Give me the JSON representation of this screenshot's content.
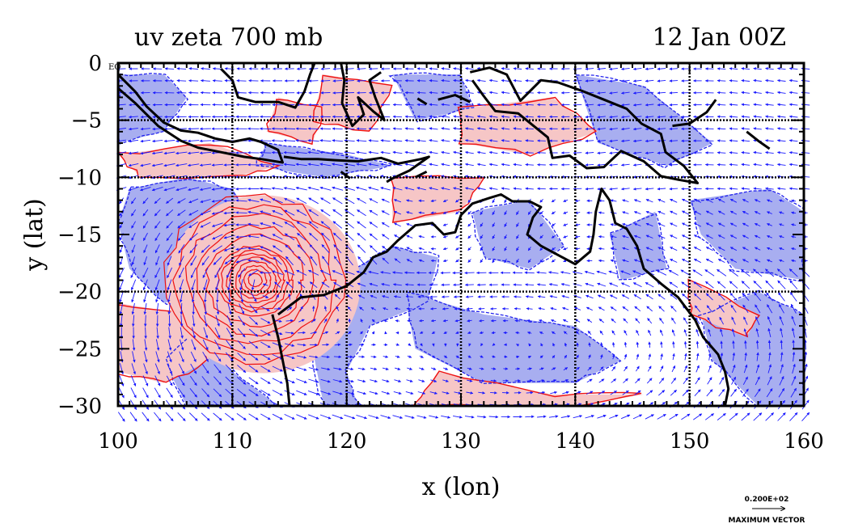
{
  "figure": {
    "title_left": "uv zeta 700 mb",
    "title_right": "12 Jan 00Z",
    "xlabel": "x (lon)",
    "ylabel": "y (lat)",
    "corner_label": "EQ",
    "vector_scale_value": "0.200E+02",
    "vector_scale_label": "MAXIMUM VECTOR"
  },
  "chart_data": {
    "type": "map",
    "xlim": [
      100,
      160
    ],
    "ylim": [
      -30,
      0
    ],
    "xticks": [
      100,
      110,
      120,
      130,
      140,
      150,
      160
    ],
    "yticks": [
      0,
      -5,
      -10,
      -15,
      -20,
      -25,
      -30
    ],
    "grid_lon": [
      110,
      120,
      130,
      140,
      150
    ],
    "grid_lat": [
      -5,
      -10,
      -20
    ],
    "colors": {
      "positive_fill": "#f6c6c6",
      "negative_fill": "#a8aef0",
      "positive_contour": "#ee1111",
      "negative_contour": "#2222ee",
      "vectors": "#1a1aff",
      "coast": "#000000"
    },
    "cyclone": {
      "lon": 112,
      "lat": -19
    },
    "negative_regions": [
      [
        [
          100,
          -1
        ],
        [
          104,
          -1
        ],
        [
          106,
          -3
        ],
        [
          104,
          -6
        ],
        [
          100,
          -7
        ]
      ],
      [
        [
          101,
          -11
        ],
        [
          106,
          -10
        ],
        [
          110,
          -11
        ],
        [
          112,
          -14
        ],
        [
          111,
          -17
        ],
        [
          108,
          -20
        ],
        [
          104,
          -21
        ],
        [
          101,
          -18
        ],
        [
          100,
          -14
        ]
      ],
      [
        [
          108,
          -22
        ],
        [
          110,
          -27
        ],
        [
          114,
          -30
        ],
        [
          106,
          -30
        ],
        [
          104,
          -26
        ]
      ],
      [
        [
          119,
          -19
        ],
        [
          124,
          -16
        ],
        [
          128,
          -17
        ],
        [
          127,
          -21
        ],
        [
          122,
          -23
        ],
        [
          120,
          -27
        ],
        [
          121,
          -30
        ],
        [
          118,
          -30
        ],
        [
          117,
          -25
        ]
      ],
      [
        [
          125,
          -20
        ],
        [
          132,
          -22
        ],
        [
          140,
          -23
        ],
        [
          144,
          -26
        ],
        [
          140,
          -28
        ],
        [
          132,
          -28
        ],
        [
          126,
          -25
        ]
      ],
      [
        [
          131,
          -13
        ],
        [
          136,
          -12
        ],
        [
          139,
          -16
        ],
        [
          136,
          -18
        ],
        [
          132,
          -17
        ]
      ],
      [
        [
          143,
          -15
        ],
        [
          147,
          -13
        ],
        [
          148,
          -18
        ],
        [
          144,
          -19
        ]
      ],
      [
        [
          150,
          -12
        ],
        [
          157,
          -11
        ],
        [
          160,
          -13
        ],
        [
          160,
          -19
        ],
        [
          154,
          -18
        ],
        [
          151,
          -15
        ]
      ],
      [
        [
          140,
          -1
        ],
        [
          146,
          -2
        ],
        [
          152,
          -7
        ],
        [
          148,
          -9
        ],
        [
          142,
          -7
        ]
      ],
      [
        [
          124,
          -1
        ],
        [
          130,
          -1
        ],
        [
          131,
          -4
        ],
        [
          126,
          -5
        ]
      ],
      [
        [
          151,
          -22
        ],
        [
          156,
          -20
        ],
        [
          160,
          -22
        ],
        [
          160,
          -30
        ],
        [
          156,
          -30
        ],
        [
          152,
          -26
        ]
      ],
      [
        [
          113,
          -7
        ],
        [
          120,
          -8
        ],
        [
          124,
          -9
        ],
        [
          118,
          -10
        ],
        [
          112,
          -9
        ]
      ]
    ],
    "positive_regions": [
      [
        [
          100,
          -8
        ],
        [
          108,
          -7
        ],
        [
          114,
          -9
        ],
        [
          110,
          -10
        ],
        [
          102,
          -10
        ]
      ],
      [
        [
          118,
          -1
        ],
        [
          124,
          -2
        ],
        [
          122,
          -6
        ],
        [
          117,
          -5
        ]
      ],
      [
        [
          130,
          -4
        ],
        [
          138,
          -3
        ],
        [
          142,
          -6
        ],
        [
          136,
          -8
        ],
        [
          130,
          -7
        ]
      ],
      [
        [
          100,
          -21
        ],
        [
          106,
          -22
        ],
        [
          108,
          -26
        ],
        [
          104,
          -28
        ],
        [
          100,
          -27
        ]
      ],
      [
        [
          124,
          -10
        ],
        [
          132,
          -10
        ],
        [
          130,
          -13
        ],
        [
          124,
          -14
        ]
      ],
      [
        [
          128,
          -27
        ],
        [
          138,
          -29
        ],
        [
          146,
          -29
        ],
        [
          140,
          -30
        ],
        [
          126,
          -30
        ]
      ],
      [
        [
          150,
          -19
        ],
        [
          156,
          -22
        ],
        [
          155,
          -24
        ],
        [
          150,
          -22
        ]
      ],
      [
        [
          114,
          -3
        ],
        [
          118,
          -4
        ],
        [
          117,
          -7
        ],
        [
          113,
          -6
        ]
      ]
    ],
    "coastlines": [
      [
        [
          113.5,
          -22
        ],
        [
          114,
          -24
        ],
        [
          114.5,
          -26.5
        ],
        [
          114.8,
          -28
        ],
        [
          115,
          -30
        ]
      ],
      [
        [
          114,
          -22
        ],
        [
          116,
          -20.5
        ],
        [
          118,
          -20.3
        ],
        [
          120,
          -19.5
        ],
        [
          121.5,
          -18.3
        ],
        [
          122.3,
          -17
        ],
        [
          123.5,
          -16.5
        ],
        [
          124.5,
          -15.5
        ],
        [
          126,
          -14.2
        ],
        [
          127.5,
          -14
        ],
        [
          128.5,
          -15
        ],
        [
          129.5,
          -14.8
        ],
        [
          130,
          -13.3
        ],
        [
          131,
          -12.3
        ],
        [
          132.5,
          -11.8
        ],
        [
          133.5,
          -11.5
        ],
        [
          134.5,
          -12.1
        ],
        [
          136,
          -12.1
        ],
        [
          137,
          -12.6
        ],
        [
          136.3,
          -13.5
        ],
        [
          135.8,
          -15
        ],
        [
          137,
          -16
        ],
        [
          138.5,
          -16.8
        ],
        [
          140,
          -17.6
        ],
        [
          141.3,
          -16.5
        ],
        [
          141.6,
          -15
        ],
        [
          141.8,
          -13
        ],
        [
          142.3,
          -11
        ],
        [
          143,
          -12
        ],
        [
          143.5,
          -14
        ],
        [
          144.5,
          -14.5
        ],
        [
          145.4,
          -16
        ],
        [
          146,
          -18
        ],
        [
          147.5,
          -19.3
        ],
        [
          149,
          -20.5
        ],
        [
          150.5,
          -22.5
        ],
        [
          151.2,
          -24
        ],
        [
          152.5,
          -25.5
        ],
        [
          153.1,
          -27
        ],
        [
          153.4,
          -28.5
        ],
        [
          153.1,
          -30
        ]
      ],
      [
        [
          100,
          -1
        ],
        [
          101.5,
          -2.5
        ],
        [
          102.5,
          -3.8
        ],
        [
          104,
          -5.2
        ],
        [
          105.5,
          -5.9
        ],
        [
          107,
          -6.1
        ],
        [
          108.5,
          -6.6
        ],
        [
          110,
          -6.9
        ],
        [
          111.5,
          -6.6
        ],
        [
          112.5,
          -6.9
        ],
        [
          114,
          -7.6
        ],
        [
          114.4,
          -8.7
        ],
        [
          112.5,
          -8.4
        ],
        [
          111,
          -8.2
        ],
        [
          109,
          -7.8
        ],
        [
          107,
          -7.4
        ],
        [
          105.5,
          -6.8
        ],
        [
          103.5,
          -5.5
        ],
        [
          101.5,
          -3.5
        ],
        [
          100,
          -2.2
        ]
      ],
      [
        [
          114.5,
          -8.2
        ],
        [
          116,
          -8.4
        ],
        [
          117.5,
          -8.4
        ],
        [
          119,
          -8.5
        ],
        [
          121,
          -8.6
        ],
        [
          123,
          -8.3
        ],
        [
          124.5,
          -8.8
        ],
        [
          126.5,
          -8.4
        ],
        [
          127.2,
          -8.2
        ],
        [
          125.5,
          -9.4
        ],
        [
          124,
          -10.1
        ],
        [
          123.5,
          -10.4
        ]
      ],
      [
        [
          109,
          -0.5
        ],
        [
          110,
          -1.5
        ],
        [
          110.5,
          -3
        ],
        [
          112,
          -3.4
        ],
        [
          114,
          -3.4
        ],
        [
          115.5,
          -3.9
        ],
        [
          116.3,
          -2.5
        ],
        [
          116.8,
          -1
        ],
        [
          117.2,
          0
        ]
      ],
      [
        [
          119.5,
          0
        ],
        [
          119.8,
          -1.5
        ],
        [
          119.6,
          -3.5
        ],
        [
          120.5,
          -5.5
        ],
        [
          121.5,
          -4.5
        ],
        [
          121,
          -3
        ],
        [
          122.3,
          -4.2
        ],
        [
          123.3,
          -5
        ],
        [
          122.5,
          -3
        ],
        [
          122,
          -1.5
        ],
        [
          123,
          -0.8
        ]
      ],
      [
        [
          130.8,
          -0.8
        ],
        [
          132.5,
          -0.4
        ],
        [
          134,
          -1
        ],
        [
          135.2,
          -3.3
        ],
        [
          137,
          -1.5
        ],
        [
          138.5,
          -1.7
        ],
        [
          140.5,
          -2.4
        ],
        [
          142.5,
          -3.2
        ],
        [
          144.5,
          -4
        ],
        [
          145.8,
          -5.3
        ],
        [
          147.5,
          -6.2
        ],
        [
          147.9,
          -7.8
        ],
        [
          149.5,
          -9
        ],
        [
          150.7,
          -10.5
        ],
        [
          149,
          -10.2
        ],
        [
          147.5,
          -9.9
        ],
        [
          146,
          -8.6
        ],
        [
          144,
          -7.7
        ],
        [
          142.5,
          -9.1
        ],
        [
          141,
          -9.2
        ],
        [
          139.5,
          -8.1
        ],
        [
          138,
          -8.3
        ],
        [
          137.6,
          -6.5
        ],
        [
          135,
          -4.4
        ],
        [
          133,
          -4.2
        ],
        [
          132,
          -2.9
        ],
        [
          131,
          -1.5
        ]
      ],
      [
        [
          148.5,
          -5.5
        ],
        [
          150,
          -5.3
        ],
        [
          151.5,
          -4.3
        ],
        [
          152.3,
          -3.2
        ]
      ],
      [
        [
          155,
          -6
        ],
        [
          156,
          -6.8
        ],
        [
          157,
          -7.5
        ]
      ],
      [
        [
          128,
          -3.2
        ],
        [
          129.5,
          -2.8
        ],
        [
          130.8,
          -3.4
        ]
      ],
      [
        [
          126.2,
          -3.1
        ],
        [
          127,
          -3.6
        ]
      ],
      [
        [
          119.5,
          -9.5
        ],
        [
          120.3,
          -10.1
        ]
      ],
      [
        [
          126,
          -10
        ],
        [
          127,
          -9.5
        ]
      ]
    ]
  }
}
